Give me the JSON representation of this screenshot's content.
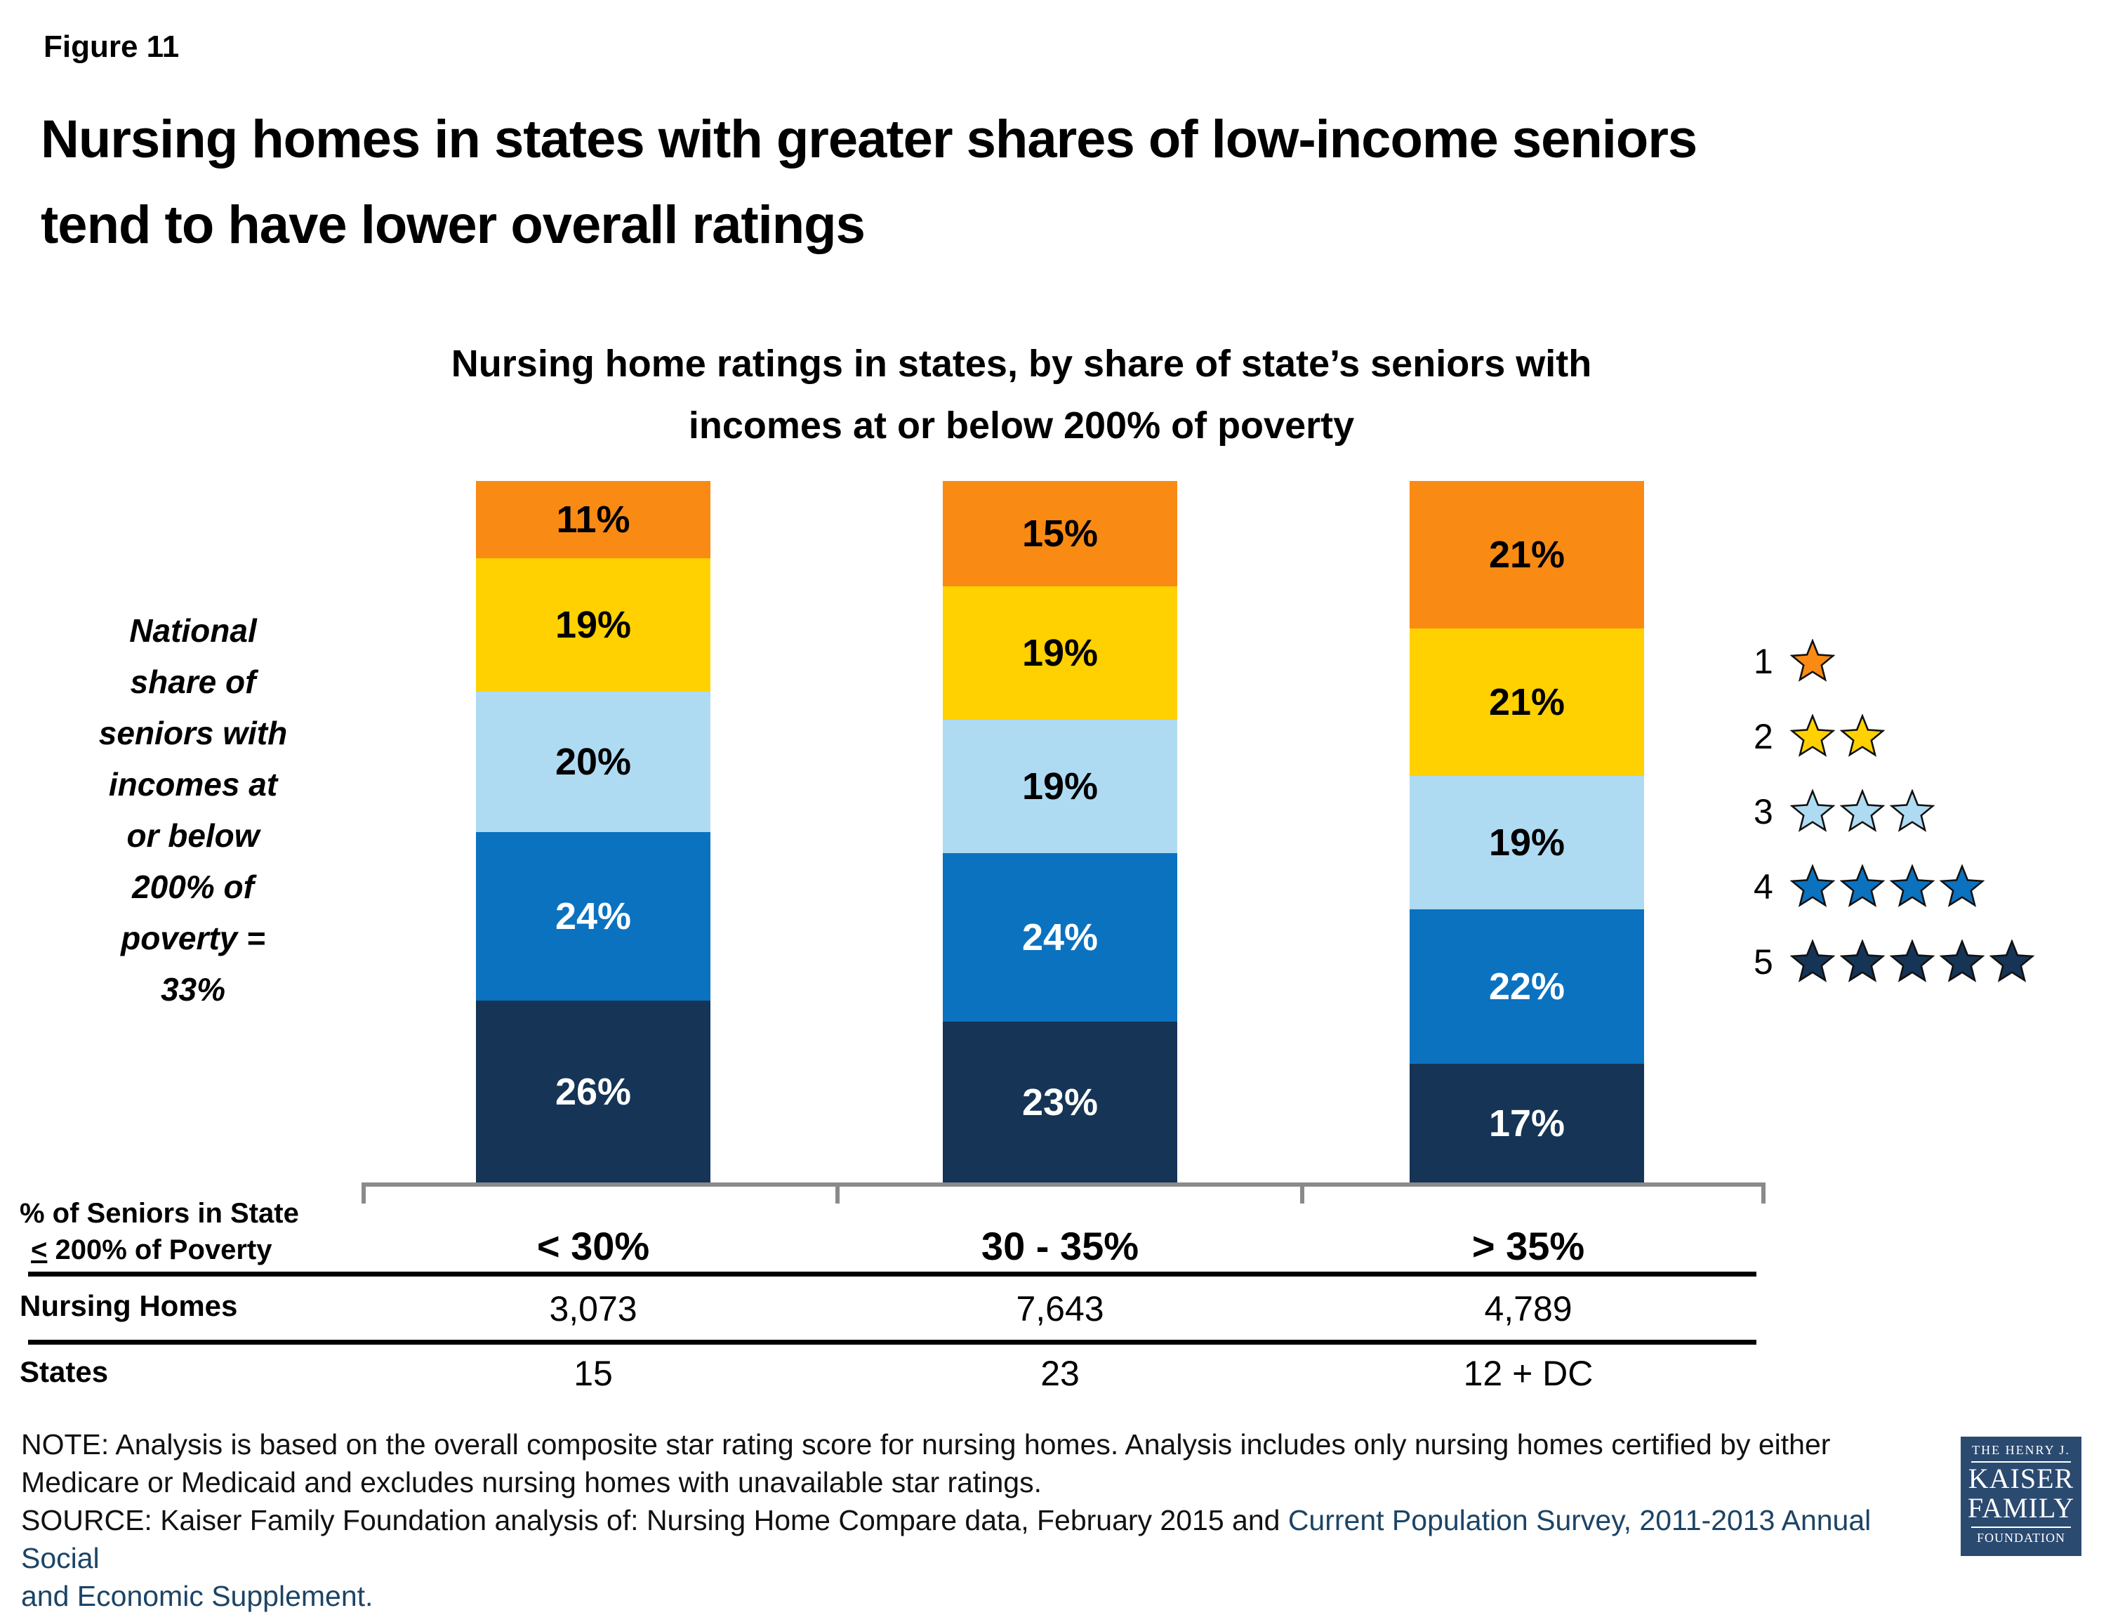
{
  "figure_label": "Figure 11",
  "title_lines": [
    "Nursing homes in states with greater shares of low-income seniors",
    "tend to have lower overall ratings"
  ],
  "chart_data": {
    "type": "bar",
    "stacked": true,
    "units": "percent of nursing homes",
    "ylim": [
      0,
      100
    ],
    "grid": false,
    "legend_position": "right",
    "axis_color": "#8a8a8a",
    "title_lines": [
      "Nursing home ratings in states, by share of state’s seniors with",
      "incomes at or below 200% of poverty"
    ],
    "categories": [
      "< 30%",
      "30 - 35%",
      "> 35%"
    ],
    "series": [
      {
        "name": "1 star",
        "color": "#F98A14",
        "label_color": "#000000",
        "values": [
          11,
          15,
          21
        ]
      },
      {
        "name": "2 stars",
        "color": "#FFD100",
        "label_color": "#000000",
        "values": [
          19,
          19,
          21
        ]
      },
      {
        "name": "3 stars",
        "color": "#AEDBF2",
        "label_color": "#000000",
        "values": [
          20,
          19,
          19
        ]
      },
      {
        "name": "4 stars",
        "color": "#0B72C0",
        "label_color": "#FFFFFF",
        "values": [
          24,
          24,
          22
        ]
      },
      {
        "name": "5 stars",
        "color": "#153456",
        "label_color": "#FFFFFF",
        "values": [
          26,
          23,
          17
        ]
      }
    ],
    "annotation_lines": [
      "National",
      "share of",
      "seniors with",
      "incomes at",
      "or below",
      "200% of",
      "poverty =",
      "33%"
    ],
    "legend_entries": [
      {
        "rating": "1",
        "stars": 1,
        "color": "#F98A14"
      },
      {
        "rating": "2",
        "stars": 2,
        "color": "#FFD100"
      },
      {
        "rating": "3",
        "stars": 3,
        "color": "#AEDBF2"
      },
      {
        "rating": "4",
        "stars": 4,
        "color": "#0B72C0"
      },
      {
        "rating": "5",
        "stars": 5,
        "color": "#153456"
      }
    ]
  },
  "table": {
    "row1_label_line1": "% of Seniors in State",
    "row1_label_prefix": "<",
    "row1_label_rest": " 200% of Poverty",
    "columns": [
      "< 30%",
      "30 - 35%",
      "> 35%"
    ],
    "row2_label": "Nursing Homes",
    "nursing_homes": [
      "3,073",
      "7,643",
      "4,789"
    ],
    "row3_label": "States",
    "states": [
      "15",
      "23",
      "12 + DC"
    ]
  },
  "notes": {
    "line1": "NOTE: Analysis is based on the overall composite star rating score for nursing homes. Analysis includes only nursing homes certified by either",
    "line2": "Medicare or Medicaid and excludes nursing homes with unavailable star ratings.",
    "line3_black": "SOURCE: Kaiser Family Foundation analysis of: Nursing Home Compare data, February 2015 and ",
    "line3_blue": "Current Population Survey, 2011-2013 Annual Social",
    "line4_blue": "and Economic Supplement."
  },
  "logo": {
    "line1": "THE HENRY J.",
    "line2": "KAISER",
    "line3": "FAMILY",
    "line4": "FOUNDATION",
    "bg_color": "#2b4a70"
  }
}
